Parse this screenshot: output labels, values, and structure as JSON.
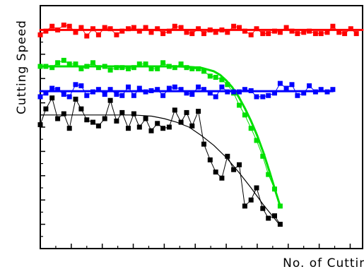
{
  "chart_data": {
    "type": "line",
    "title": "",
    "xlabel": "No. of Cutting",
    "ylabel": "Cutting Speed",
    "xlim": [
      0,
      52
    ],
    "ylim": [
      0,
      100
    ],
    "x_ticks": [
      0,
      5,
      10,
      15,
      20,
      25,
      30,
      35,
      40,
      45,
      50
    ],
    "y_ticks": [
      10,
      20,
      30,
      40,
      50,
      60,
      70,
      80,
      90
    ],
    "tick_labels_visible": false,
    "grid": false,
    "legend": "none",
    "series": [
      {
        "color": "#ff0000",
        "marker": "square",
        "x": [
          0.0,
          0.9,
          1.9,
          2.8,
          3.8,
          4.7,
          5.7,
          6.6,
          7.5,
          8.5,
          9.4,
          10.4,
          11.3,
          12.3,
          13.2,
          14.2,
          15.1,
          16.0,
          17.0,
          17.9,
          18.9,
          19.8,
          20.8,
          21.7,
          22.7,
          23.6,
          24.5,
          25.5,
          26.4,
          27.4,
          28.3,
          29.3,
          30.2,
          31.2,
          32.1,
          33.0,
          34.0,
          34.9,
          35.9,
          36.8,
          37.8,
          38.7,
          39.7,
          40.6,
          41.5,
          42.5,
          43.4,
          44.4,
          45.3,
          46.3,
          47.2,
          48.2,
          49.1,
          50.1,
          51.0
        ],
        "y": [
          88.0,
          89.5,
          91.5,
          90.0,
          92.0,
          91.5,
          89.0,
          91.0,
          87.5,
          90.5,
          88.0,
          91.0,
          90.5,
          88.0,
          89.5,
          90.5,
          91.0,
          89.5,
          91.0,
          89.0,
          90.5,
          88.5,
          89.5,
          91.5,
          91.0,
          89.0,
          88.5,
          90.5,
          88.5,
          90.0,
          89.0,
          90.0,
          89.0,
          91.5,
          91.0,
          89.5,
          88.0,
          90.5,
          88.5,
          88.5,
          89.5,
          89.0,
          91.0,
          89.5,
          88.5,
          89.0,
          89.5,
          88.5,
          88.5,
          89.0,
          91.5,
          89.0,
          88.5,
          90.5,
          88.5
        ],
        "fit": {
          "x": [
            0,
            52
          ],
          "y": [
            90,
            90
          ]
        }
      },
      {
        "color": "#00e000",
        "marker": "square",
        "x": [
          0.0,
          0.9,
          1.9,
          2.8,
          3.8,
          4.7,
          5.7,
          6.6,
          7.5,
          8.5,
          9.4,
          10.4,
          11.3,
          12.3,
          13.2,
          14.2,
          15.1,
          16.0,
          17.0,
          17.9,
          18.9,
          19.8,
          20.8,
          21.7,
          22.7,
          23.6,
          24.5,
          25.5,
          26.4,
          27.4,
          28.3,
          29.3,
          30.2,
          31.2,
          32.1,
          33.0,
          34.0,
          34.9,
          35.9,
          36.8,
          37.8,
          38.7
        ],
        "y": [
          75.0,
          75.0,
          74.5,
          76.5,
          77.5,
          76.0,
          76.0,
          74.0,
          75.0,
          76.5,
          74.5,
          75.0,
          73.5,
          74.5,
          74.5,
          74.0,
          74.5,
          76.0,
          76.0,
          74.0,
          74.0,
          76.5,
          75.0,
          74.5,
          76.0,
          74.5,
          74.0,
          74.0,
          73.0,
          71.0,
          70.5,
          69.5,
          67.5,
          64.0,
          59.0,
          55.0,
          49.5,
          44.5,
          38.0,
          30.5,
          24.5,
          17.5
        ],
        "fit": {
          "x": [
            0,
            2,
            4,
            6,
            8,
            10,
            12,
            14,
            16,
            18,
            20,
            22,
            24,
            26,
            28,
            29,
            30,
            31,
            32,
            33,
            34,
            35,
            36,
            37,
            38,
            38.7
          ],
          "y": [
            75,
            75,
            75,
            75,
            75,
            75,
            75,
            75,
            75,
            75,
            75,
            75,
            74.8,
            74.4,
            73,
            71.5,
            69.2,
            66.3,
            62.5,
            57.8,
            52.5,
            46.5,
            39.5,
            31.5,
            23.2,
            17.5
          ]
        }
      },
      {
        "color": "#0000ff",
        "marker": "square",
        "x": [
          0.0,
          0.9,
          1.9,
          2.8,
          3.8,
          4.7,
          5.7,
          6.6,
          7.5,
          8.5,
          9.4,
          10.4,
          11.3,
          12.3,
          13.2,
          14.2,
          15.1,
          16.0,
          17.0,
          17.9,
          18.9,
          19.8,
          20.8,
          21.7,
          22.7,
          23.6,
          24.5,
          25.5,
          26.4,
          27.4,
          28.3,
          29.3,
          30.2,
          31.2,
          32.1,
          33.0,
          34.0,
          34.9,
          35.9,
          36.8,
          37.8,
          38.7,
          39.7,
          40.6,
          41.5,
          42.5,
          43.4,
          44.4,
          45.3,
          46.3,
          47.2
        ],
        "y": [
          62.5,
          64.0,
          66.0,
          65.5,
          63.5,
          62.5,
          67.5,
          67.0,
          63.0,
          64.5,
          65.5,
          63.5,
          65.5,
          63.5,
          63.0,
          66.5,
          63.0,
          66.0,
          64.5,
          65.0,
          65.5,
          63.0,
          66.0,
          66.5,
          65.5,
          64.0,
          63.5,
          66.5,
          65.5,
          64.0,
          62.5,
          66.5,
          64.5,
          64.5,
          64.5,
          65.5,
          65.0,
          62.5,
          62.5,
          63.0,
          64.0,
          68.0,
          66.0,
          67.5,
          63.0,
          64.0,
          67.0,
          64.5,
          65.5,
          64.5,
          65.5
        ],
        "fit": {
          "x": [
            0,
            47.2
          ],
          "y": [
            64.8,
            64.8
          ]
        }
      },
      {
        "color": "#000000",
        "marker": "square",
        "x": [
          0.0,
          0.9,
          1.9,
          2.8,
          3.8,
          4.7,
          5.7,
          6.6,
          7.5,
          8.5,
          9.4,
          10.4,
          11.3,
          12.3,
          13.2,
          14.2,
          15.1,
          16.0,
          17.0,
          17.9,
          18.9,
          19.8,
          20.8,
          21.7,
          22.7,
          23.6,
          24.5,
          25.5,
          26.4,
          27.4,
          28.3,
          29.3,
          30.2,
          31.2,
          32.1,
          33.0,
          34.0,
          34.9,
          35.9,
          36.8,
          37.8,
          38.7
        ],
        "y": [
          51.0,
          57.5,
          62.0,
          53.5,
          55.5,
          49.5,
          61.5,
          57.5,
          53.0,
          52.0,
          50.5,
          53.5,
          61.0,
          52.5,
          56.0,
          49.5,
          55.5,
          50.0,
          53.5,
          48.5,
          51.5,
          49.5,
          50.0,
          57.0,
          52.0,
          56.0,
          50.5,
          56.5,
          43.0,
          36.5,
          31.5,
          29.0,
          38.0,
          32.5,
          34.5,
          17.5,
          20.0,
          25.0,
          16.5,
          12.5,
          13.5,
          10.0
        ],
        "fit": {
          "x": [
            0,
            5,
            10,
            15,
            18,
            20,
            22,
            24,
            26,
            28,
            30,
            32,
            34,
            36,
            38.7
          ],
          "y": [
            55,
            55,
            55,
            55,
            54.5,
            53.5,
            52,
            50,
            46.5,
            42.5,
            37.5,
            31.5,
            25,
            18,
            9.5
          ]
        }
      }
    ]
  }
}
